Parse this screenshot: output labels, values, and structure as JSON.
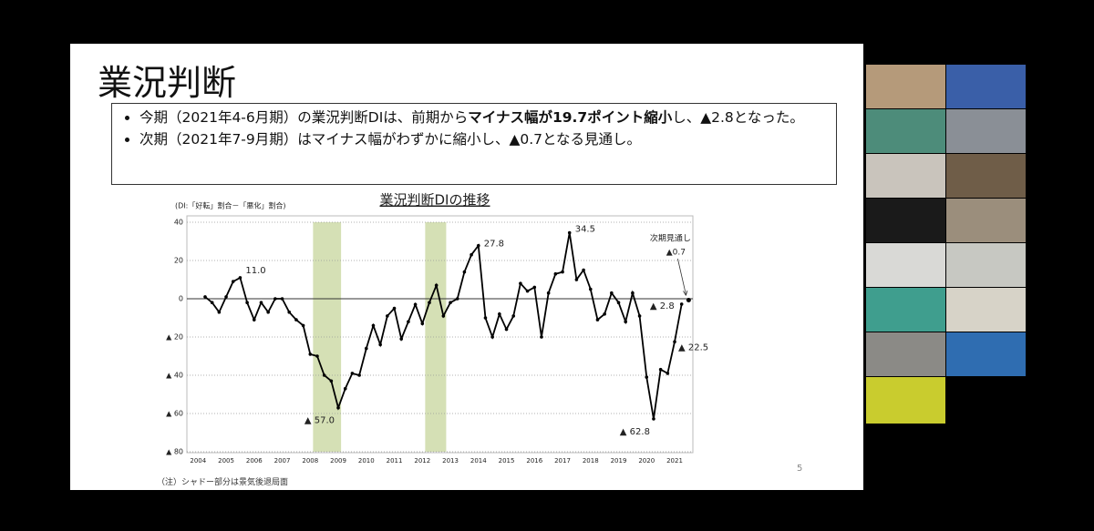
{
  "slide": {
    "title": "業況判断",
    "bullets": [
      [
        "今期（2021年4-6月期）の業況判断DIは、前期から",
        "マイナス幅が19.7ポイント縮小",
        "し、▲2.8となった。"
      ],
      [
        "次期（2021年7-9月期）はマイナス幅がわずかに縮小し、▲0.7となる見通し。"
      ]
    ],
    "footnote": "（注）シャドー部分は景気後退局面",
    "page_number": "5"
  },
  "chart_data": {
    "type": "line",
    "title": "業況判断DIの推移",
    "y_axis_label": "(DI:「好転」割合－「悪化」割合)",
    "x": [
      2004.25,
      2004.5,
      2004.75,
      2005,
      2005.25,
      2005.5,
      2005.75,
      2006,
      2006.25,
      2006.5,
      2006.75,
      2007,
      2007.25,
      2007.5,
      2007.75,
      2008,
      2008.25,
      2008.5,
      2008.75,
      2009,
      2009.25,
      2009.5,
      2009.75,
      2010,
      2010.25,
      2010.5,
      2010.75,
      2011,
      2011.25,
      2011.5,
      2011.75,
      2012,
      2012.25,
      2012.5,
      2012.75,
      2013,
      2013.25,
      2013.5,
      2013.75,
      2014,
      2014.25,
      2014.5,
      2014.75,
      2015,
      2015.25,
      2015.5,
      2015.75,
      2016,
      2016.25,
      2016.5,
      2016.75,
      2017,
      2017.25,
      2017.5,
      2017.75,
      2018,
      2018.25,
      2018.5,
      2018.75,
      2019,
      2019.25,
      2019.5,
      2019.75,
      2020,
      2020.25,
      2020.5,
      2020.75,
      2021,
      2021.25
    ],
    "series": [
      {
        "color": "#000000",
        "values": [
          1,
          -2,
          -7,
          1,
          9,
          11,
          -2,
          -11,
          -2,
          -7,
          0,
          0,
          -7,
          -11,
          -14,
          -29,
          -30,
          -40,
          -43,
          -57,
          -47,
          -39,
          -40,
          -26,
          -14,
          -24,
          -9,
          -5,
          -21,
          -12,
          -3,
          -13,
          -2,
          7,
          -9,
          -2,
          0,
          14,
          23,
          27.8,
          -10,
          -20,
          -8,
          -16,
          -9,
          8,
          4,
          6,
          -20,
          3,
          13,
          14,
          34.5,
          10,
          15,
          5,
          -11,
          -8,
          3,
          -2,
          -12,
          3,
          -9,
          -41,
          -62.8,
          -37,
          -39,
          -22.5,
          -2.8
        ],
        "value_labels": [
          null,
          null,
          null,
          null,
          null,
          "11.0",
          null,
          null,
          null,
          null,
          null,
          null,
          null,
          null,
          null,
          null,
          null,
          null,
          null,
          "▲ 57.0",
          null,
          null,
          null,
          null,
          null,
          null,
          null,
          null,
          null,
          null,
          null,
          null,
          null,
          null,
          null,
          null,
          null,
          null,
          null,
          "27.8",
          null,
          null,
          null,
          null,
          null,
          null,
          null,
          null,
          null,
          null,
          null,
          null,
          "34.5",
          null,
          null,
          null,
          null,
          null,
          null,
          null,
          null,
          null,
          null,
          null,
          "▲ 62.8",
          null,
          null,
          "▲ 22.5",
          "▲ 2.8"
        ]
      }
    ],
    "forecast": {
      "x": 2021.5,
      "value": -0.7,
      "label": "次期見通し",
      "value_label": "▲0.7"
    },
    "shaded_regions": [
      [
        2008.1,
        2009.1
      ],
      [
        2012.1,
        2012.85
      ]
    ],
    "shade_color": "#d5e0b5",
    "xlim": [
      2003.6,
      2021.65
    ],
    "xticks": [
      2004,
      2005,
      2006,
      2007,
      2008,
      2009,
      2010,
      2011,
      2012,
      2013,
      2014,
      2015,
      2016,
      2017,
      2018,
      2019,
      2020,
      2021
    ],
    "ylim": [
      -80,
      40
    ],
    "yticks": [
      40,
      20,
      0,
      {
        "value": -20,
        "label": "▲ 20"
      },
      {
        "value": -40,
        "label": "▲ 40"
      },
      {
        "value": -60,
        "label": "▲ 60"
      },
      {
        "value": -80,
        "label": "▲ 80"
      }
    ],
    "grid": true
  }
}
